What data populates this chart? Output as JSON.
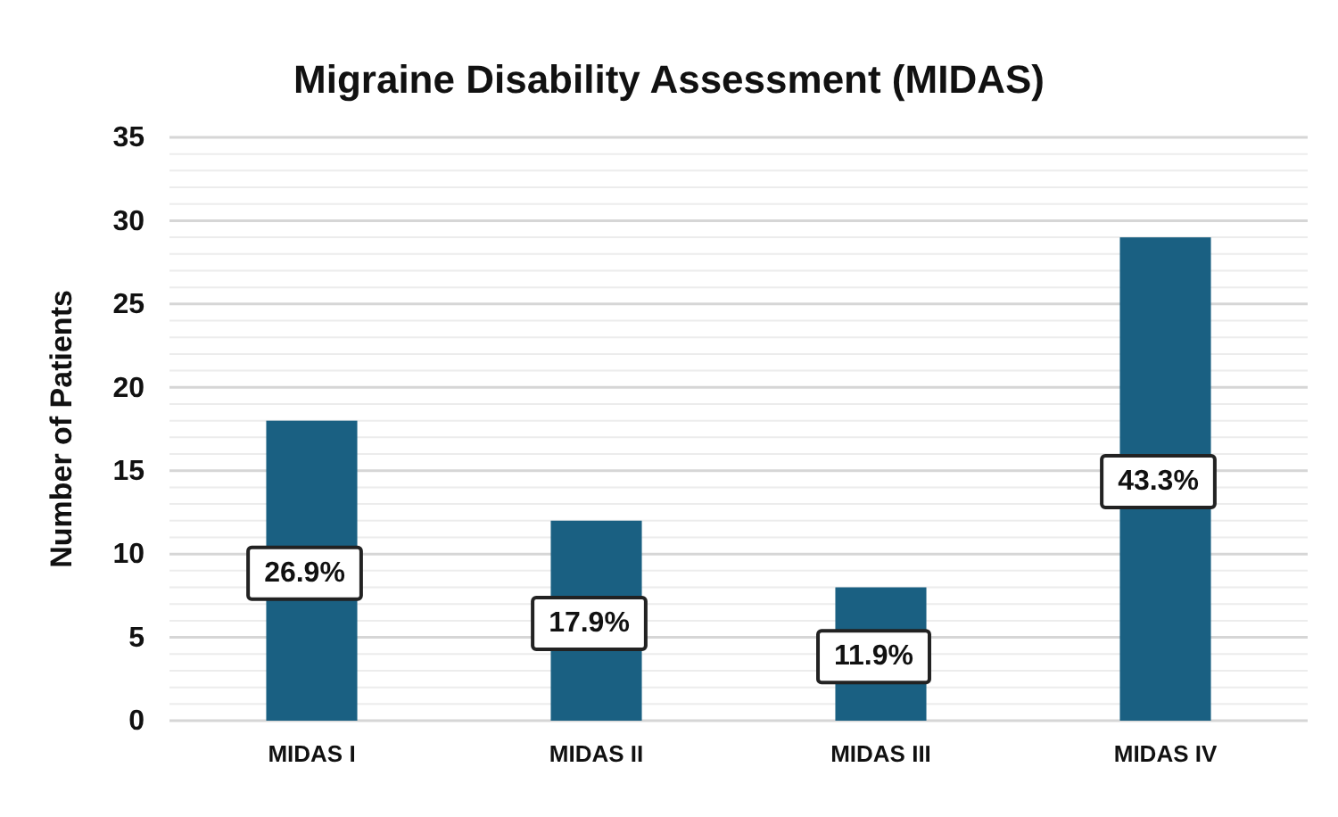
{
  "chart_data": {
    "type": "bar",
    "title": "Migraine Disability Assessment (MIDAS)",
    "ylabel": "Number of Patients",
    "categories": [
      "MIDAS I",
      "MIDAS II",
      "MIDAS III",
      "MIDAS IV"
    ],
    "values": [
      18,
      12,
      8,
      29
    ],
    "color": "#1a6082",
    "annotations": [
      "26.9%",
      "17.9%",
      "11.9%",
      "43.3%"
    ],
    "ylim": [
      0,
      35
    ],
    "yticks": [
      0,
      {
        "value": 1,
        "label": null
      },
      {
        "value": 2,
        "label": null
      },
      {
        "value": 3,
        "label": null
      },
      {
        "value": 4,
        "label": null
      },
      5,
      {
        "value": 6,
        "label": null
      },
      {
        "value": 7,
        "label": null
      },
      {
        "value": 8,
        "label": null
      },
      {
        "value": 9,
        "label": null
      },
      10,
      {
        "value": 11,
        "label": null
      },
      {
        "value": 12,
        "label": null
      },
      {
        "value": 13,
        "label": null
      },
      {
        "value": 14,
        "label": null
      },
      15,
      {
        "value": 16,
        "label": null
      },
      {
        "value": 17,
        "label": null
      },
      {
        "value": 18,
        "label": null
      },
      {
        "value": 19,
        "label": null
      },
      20,
      {
        "value": 21,
        "label": null
      },
      {
        "value": 22,
        "label": null
      },
      {
        "value": 23,
        "label": null
      },
      {
        "value": 24,
        "label": null
      },
      25,
      {
        "value": 26,
        "label": null
      },
      {
        "value": 27,
        "label": null
      },
      {
        "value": 28,
        "label": null
      },
      {
        "value": 29,
        "label": null
      },
      30,
      {
        "value": 31,
        "label": null
      },
      {
        "value": 32,
        "label": null
      },
      {
        "value": 33,
        "label": null
      },
      {
        "value": 34,
        "label": null
      },
      35
    ],
    "grid": true
  }
}
